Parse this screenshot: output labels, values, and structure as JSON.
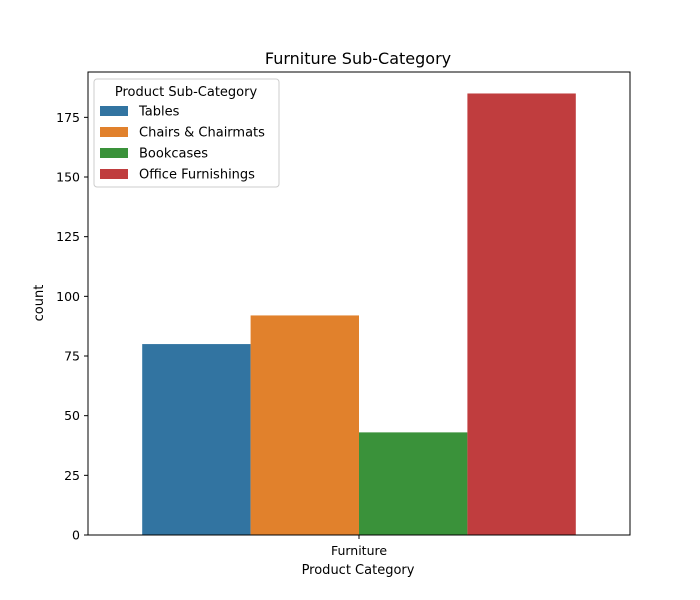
{
  "chart_data": {
    "type": "bar",
    "title": "Furniture Sub-Category",
    "xlabel": "Product Category",
    "ylabel": "count",
    "categories": [
      "Furniture"
    ],
    "series": [
      {
        "name": "Tables",
        "values": [
          80
        ],
        "color": "#3274a1"
      },
      {
        "name": "Chairs & Chairmats",
        "values": [
          92
        ],
        "color": "#e1812c"
      },
      {
        "name": "Bookcases",
        "values": [
          43
        ],
        "color": "#3a923a"
      },
      {
        "name": "Office Furnishings",
        "values": [
          185
        ],
        "color": "#c03d3e"
      }
    ],
    "ylim": [
      0,
      194
    ],
    "yticks": [
      0,
      25,
      50,
      75,
      100,
      125,
      150,
      175
    ],
    "grid": false,
    "legend": {
      "title": "Product Sub-Category",
      "placement": "top-left"
    }
  }
}
